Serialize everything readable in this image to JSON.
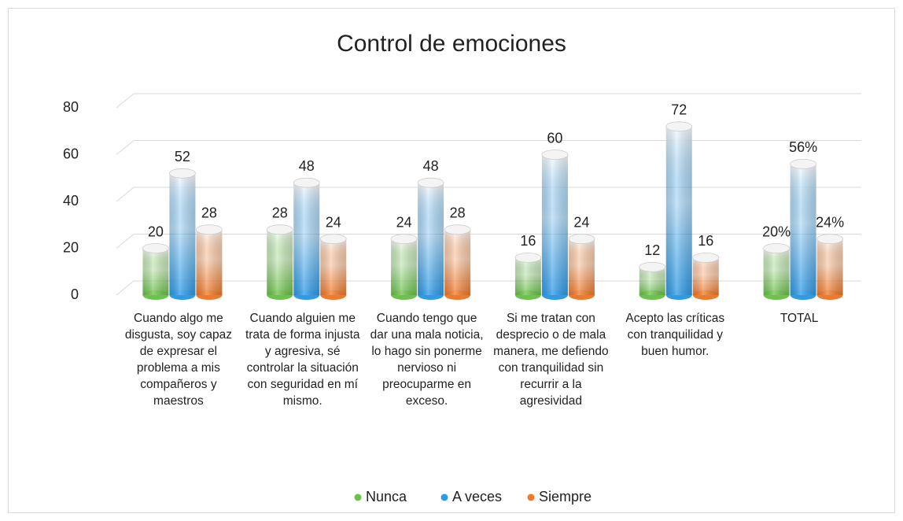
{
  "chart_data": {
    "type": "bar3d",
    "title": "Control de emociones",
    "categories": [
      "Cuando algo me disgusta, soy capaz de expresar el problema a mis compañeros y maestros",
      "Cuando alguien me trata de forma injusta y agresiva, sé controlar la situación con seguridad en mí mismo.",
      "Cuando tengo que dar una mala noticia, lo hago sin ponerme nervioso ni preocuparme en exceso.",
      "Si me tratan con desprecio o de mala manera, me defiendo con tranquilidad sin recurrir a la agresividad",
      "Acepto las críticas con tranquilidad y buen humor.",
      "TOTAL"
    ],
    "series": [
      {
        "name": "Nunca",
        "color": "#6cc24a",
        "values": [
          20,
          28,
          24,
          16,
          12,
          20
        ],
        "value_labels": [
          "20",
          "28",
          "24",
          "16",
          "12",
          "20%"
        ]
      },
      {
        "name": "A veces",
        "color": "#2e9be8",
        "values": [
          52,
          48,
          48,
          60,
          72,
          56
        ],
        "value_labels": [
          "52",
          "48",
          "48",
          "60",
          "72",
          "56%"
        ]
      },
      {
        "name": "Siempre",
        "color": "#f07a2a",
        "values": [
          28,
          24,
          28,
          24,
          16,
          24
        ],
        "value_labels": [
          "28",
          "24",
          "28",
          "24",
          "16",
          "24%"
        ]
      }
    ],
    "ylim": [
      0,
      80
    ],
    "yticks": [
      0,
      20,
      40,
      60,
      80
    ],
    "grid": true,
    "legend": "bottom"
  }
}
